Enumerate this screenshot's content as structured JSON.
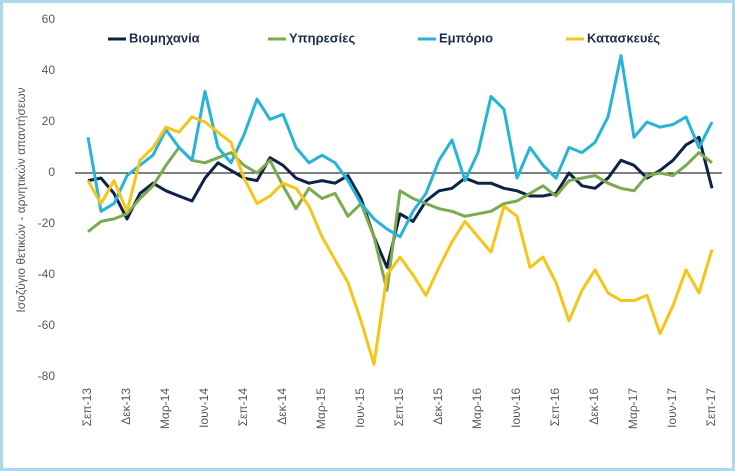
{
  "chart_data": {
    "type": "line",
    "y_label": "Ισοζύγιο θετικών - αρνητικών απαντήσεων",
    "categories": [
      "Σεπ-13",
      null,
      null,
      "Δεκ-13",
      null,
      null,
      "Μαρ-14",
      null,
      null,
      "Ιουν-14",
      null,
      null,
      "Σεπ-14",
      null,
      null,
      "Δεκ-14",
      null,
      null,
      "Μαρ-15",
      null,
      null,
      "Ιουν-15",
      null,
      null,
      "Σεπ-15",
      null,
      null,
      "Δεκ-15",
      null,
      null,
      "Μαρ-16",
      null,
      null,
      "Ιουν-16",
      null,
      null,
      "Σεπ-16",
      null,
      null,
      "Δεκ-16",
      null,
      null,
      "Μαρ-17",
      null,
      null,
      "Ιουν-17",
      null,
      null,
      "Σεπ-17"
    ],
    "series": [
      {
        "name": "Βιομηχανία",
        "color": "#0f2347",
        "values": [
          -3,
          -2,
          -8,
          -18,
          -8,
          -4,
          -7,
          -9,
          -11,
          -2,
          4,
          1,
          -2,
          -3,
          6,
          3,
          -2,
          -4,
          -3,
          -4,
          -1,
          -10,
          -25,
          -37,
          -16,
          -19,
          -11,
          -7,
          -6,
          -2,
          -4,
          -4,
          -6,
          -7,
          -9,
          -9,
          -8,
          0,
          -5,
          -6,
          -2,
          5,
          3,
          -2,
          1,
          5,
          11,
          14,
          -6
        ]
      },
      {
        "name": "Υπηρεσίες",
        "color": "#7aab4e",
        "values": [
          -23,
          -19,
          -18,
          -16,
          -10,
          -5,
          3,
          10,
          5,
          4,
          6,
          8,
          3,
          0,
          5,
          -5,
          -14,
          -6,
          -10,
          -8,
          -17,
          -12,
          -25,
          -46,
          -7,
          -10,
          -12,
          -14,
          -15,
          -17,
          -16,
          -15,
          -12,
          -11,
          -8,
          -5,
          -9,
          -3,
          -2,
          -1,
          -4,
          -6,
          -7,
          -1,
          0,
          -1,
          3,
          8,
          4
        ]
      },
      {
        "name": "Εμπόριο",
        "color": "#28b4d8",
        "values": [
          14,
          -15,
          -12,
          -1,
          3,
          7,
          17,
          10,
          5,
          32,
          10,
          4,
          15,
          29,
          21,
          23,
          10,
          4,
          7,
          4,
          -3,
          -12,
          -18,
          -22,
          -25,
          -15,
          -8,
          5,
          13,
          -3,
          8,
          30,
          25,
          -2,
          10,
          3,
          -2,
          10,
          8,
          12,
          22,
          46,
          14,
          20,
          18,
          19,
          22,
          10,
          20
        ]
      },
      {
        "name": "Κατασκευές",
        "color": "#f5c518",
        "values": [
          -3,
          -12,
          -3,
          -15,
          5,
          10,
          18,
          16,
          22,
          20,
          16,
          12,
          -2,
          -12,
          -9,
          -4,
          -6,
          -13,
          -25,
          -34,
          -43,
          -58,
          -75,
          -40,
          -33,
          -40,
          -48,
          -37,
          -27,
          -19,
          -25,
          -31,
          -13,
          -17,
          -37,
          -33,
          -43,
          -58,
          -46,
          -38,
          -47,
          -50,
          -50,
          -48,
          -63,
          -52,
          -38,
          -47,
          -30
        ]
      }
    ],
    "ylim": [
      -80,
      60
    ],
    "yticks": [
      -80,
      -60,
      -40,
      -20,
      0,
      20,
      40,
      60
    ],
    "grid": false,
    "legend": "top"
  }
}
